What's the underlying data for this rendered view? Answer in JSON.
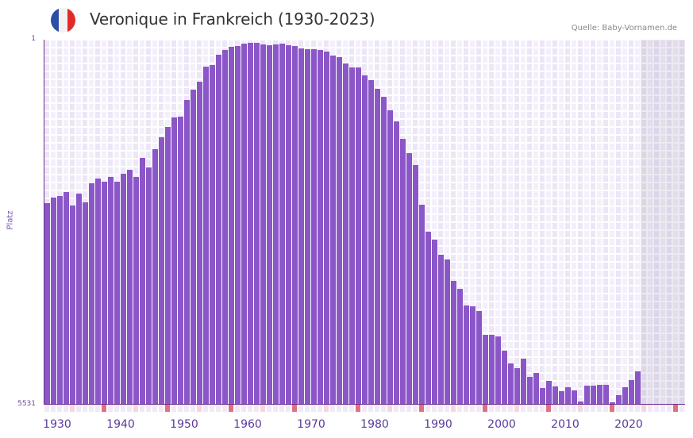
{
  "header": {
    "title": "Veronique in Frankreich (1930-2023)",
    "source": "Quelle: Baby-Vornamen.de",
    "flag_colors": [
      "#2b4fa2",
      "#f2f2f2",
      "#e22a2a"
    ]
  },
  "colors": {
    "bar": "#8b56c8",
    "grid_a": "#ede6f7",
    "grid_b": "#f4f0fb",
    "tick_decade": "#e07080",
    "tick_mid": "#f5d6de",
    "tick_other": "#efe9f8",
    "future_shade": "#e2dced"
  },
  "chart_data": {
    "type": "bar",
    "title": "Veronique in Frankreich (1930-2023)",
    "xlabel": "",
    "ylabel": "Platz",
    "y_inverted": true,
    "ylim": [
      1,
      5531
    ],
    "yticks": [
      "1",
      "5531"
    ],
    "xlim": [
      1930,
      2030
    ],
    "xticks": [
      "1930",
      "1940",
      "1950",
      "1960",
      "1970",
      "1980",
      "1990",
      "2000",
      "2010",
      "2020"
    ],
    "grid": true,
    "legend": null,
    "x": [
      1930,
      1931,
      1932,
      1933,
      1934,
      1935,
      1936,
      1937,
      1938,
      1939,
      1940,
      1941,
      1942,
      1943,
      1944,
      1945,
      1946,
      1947,
      1948,
      1949,
      1950,
      1951,
      1952,
      1953,
      1954,
      1955,
      1956,
      1957,
      1958,
      1959,
      1960,
      1961,
      1962,
      1963,
      1964,
      1965,
      1966,
      1967,
      1968,
      1969,
      1970,
      1971,
      1972,
      1973,
      1974,
      1975,
      1976,
      1977,
      1978,
      1979,
      1980,
      1981,
      1982,
      1983,
      1984,
      1985,
      1986,
      1987,
      1988,
      1989,
      1990,
      1991,
      1992,
      1993,
      1994,
      1995,
      1996,
      1997,
      1998,
      1999,
      2000,
      2001,
      2002,
      2003,
      2004,
      2005,
      2006,
      2007,
      2008,
      2009,
      2010,
      2011,
      2012,
      2013,
      2014,
      2015,
      2016,
      2017,
      2018,
      2019,
      2020,
      2021,
      2022,
      2023
    ],
    "values": [
      2478,
      2394,
      2370,
      2310,
      2514,
      2334,
      2466,
      2178,
      2106,
      2154,
      2082,
      2154,
      2034,
      1974,
      2082,
      1793,
      1937,
      1661,
      1480,
      1324,
      1180,
      1168,
      916,
      760,
      640,
      412,
      388,
      232,
      160,
      112,
      100,
      64,
      52,
      52,
      76,
      88,
      76,
      64,
      88,
      100,
      136,
      148,
      148,
      160,
      184,
      244,
      268,
      364,
      424,
      424,
      544,
      616,
      748,
      868,
      1072,
      1240,
      1504,
      1721,
      1901,
      2502,
      2911,
      3031,
      3260,
      3332,
      3657,
      3777,
      4029,
      4041,
      4113,
      4474,
      4474,
      4498,
      4715,
      4907,
      4979,
      4835,
      5111,
      5051,
      5279,
      5171,
      5255,
      5327,
      5267,
      5315,
      5483,
      5243,
      5243,
      5231,
      5231,
      5495,
      5387,
      5267,
      5159,
      5026
    ],
    "shaded_future_from": 2024
  },
  "axis": {
    "y_top_label": "1",
    "y_bottom_label": "5531",
    "y_title": "Platz",
    "x_labels": [
      "1930",
      "1940",
      "1950",
      "1960",
      "1970",
      "1980",
      "1990",
      "2000",
      "2010",
      "2020"
    ]
  }
}
